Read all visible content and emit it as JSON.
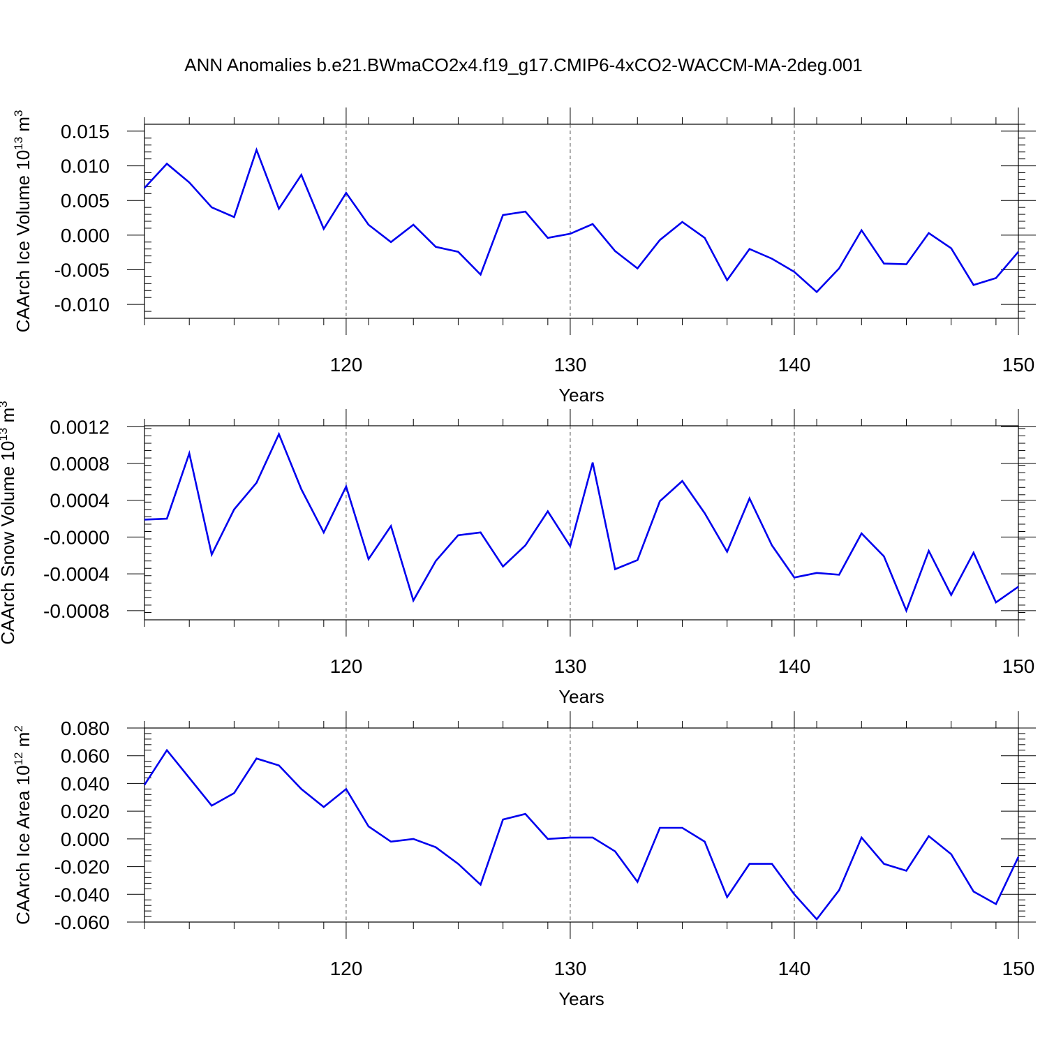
{
  "title": "ANN Anomalies b.e21.BWmaCO2x4.f19_g17.CMIP6-4xCO2-WACCM-MA-2deg.001",
  "chart_data": [
    {
      "type": "line",
      "ylabel_text": "CAArch Ice Volume 10",
      "ylabel_exp": "13",
      "ylabel_unit": " m",
      "ylabel_unit_exp": "3",
      "xlabel": "Years",
      "xlim": [
        111,
        150
      ],
      "ylim": [
        -0.012,
        0.016
      ],
      "yticks": [
        0.015,
        0.01,
        0.005,
        0.0,
        -0.005,
        -0.01
      ],
      "ytick_labels": [
        "0.015",
        "0.010",
        "0.005",
        "0.000",
        "-0.005",
        "-0.010"
      ],
      "xticks": [
        120,
        130,
        140,
        150
      ],
      "xtick_labels": [
        "120",
        "130",
        "140",
        "150"
      ],
      "grid": "vertical-dashed",
      "line_color": "#0000ee",
      "x": [
        111,
        112,
        113,
        114,
        115,
        116,
        117,
        118,
        119,
        120,
        121,
        122,
        123,
        124,
        125,
        126,
        127,
        128,
        129,
        130,
        131,
        132,
        133,
        134,
        135,
        136,
        137,
        138,
        139,
        140,
        141,
        142,
        143,
        144,
        145,
        146,
        147,
        148,
        149,
        150
      ],
      "values": [
        0.0068,
        0.0103,
        0.0076,
        0.004,
        0.0026,
        0.0123,
        0.0038,
        0.0087,
        0.0009,
        0.0061,
        0.0015,
        -0.001,
        0.0015,
        -0.0017,
        -0.0024,
        -0.0057,
        0.0029,
        0.0034,
        -0.0004,
        0.0002,
        0.0016,
        -0.0023,
        -0.0048,
        -0.0007,
        0.0019,
        -0.0004,
        -0.0065,
        -0.002,
        -0.0034,
        -0.0053,
        -0.0082,
        -0.0048,
        0.0007,
        -0.0041,
        -0.0042,
        0.0003,
        -0.0019,
        -0.0072,
        -0.0062,
        -0.0024
      ]
    },
    {
      "type": "line",
      "ylabel_text": "CAArch Snow Volume 10",
      "ylabel_exp": "13",
      "ylabel_unit": " m",
      "ylabel_unit_exp": "3",
      "xlabel": "Years",
      "xlim": [
        111,
        150
      ],
      "ylim": [
        -0.0009,
        0.00121
      ],
      "yticks": [
        0.0012,
        0.0008,
        0.0004,
        0.0,
        -0.0004,
        -0.0008
      ],
      "ytick_labels": [
        "0.0012",
        "0.0008",
        "0.0004",
        "-0.0000",
        "-0.0004",
        "-0.0008"
      ],
      "xticks": [
        120,
        130,
        140,
        150
      ],
      "xtick_labels": [
        "120",
        "130",
        "140",
        "150"
      ],
      "grid": "vertical-dashed",
      "line_color": "#0000ee",
      "x": [
        111,
        112,
        113,
        114,
        115,
        116,
        117,
        118,
        119,
        120,
        121,
        122,
        123,
        124,
        125,
        126,
        127,
        128,
        129,
        130,
        131,
        132,
        133,
        134,
        135,
        136,
        137,
        138,
        139,
        140,
        141,
        142,
        143,
        144,
        145,
        146,
        147,
        148,
        149,
        150
      ],
      "values": [
        0.00019,
        0.0002,
        0.00091,
        -0.00019,
        0.0003,
        0.00059,
        0.00112,
        0.00052,
        5e-05,
        0.00055,
        -0.00024,
        0.00012,
        -0.00069,
        -0.00026,
        2e-05,
        5e-05,
        -0.00032,
        -9e-05,
        0.00028,
        -0.0001,
        0.00081,
        -0.00035,
        -0.00025,
        0.00039,
        0.00061,
        0.00026,
        -0.00016,
        0.00042,
        -9e-05,
        -0.00044,
        -0.00039,
        -0.00041,
        4e-05,
        -0.00021,
        -0.0008,
        -0.00015,
        -0.00063,
        -0.00017,
        -0.00071,
        -0.00054
      ]
    },
    {
      "type": "line",
      "ylabel_text": "CAArch Ice Area 10",
      "ylabel_exp": "12",
      "ylabel_unit": " m",
      "ylabel_unit_exp": "2",
      "xlabel": "Years",
      "xlim": [
        111,
        150
      ],
      "ylim": [
        -0.06,
        0.08
      ],
      "yticks": [
        0.08,
        0.06,
        0.04,
        0.02,
        0.0,
        -0.02,
        -0.04,
        -0.06
      ],
      "ytick_labels": [
        "0.080",
        "0.060",
        "0.040",
        "0.020",
        "0.000",
        "-0.020",
        "-0.040",
        "-0.060"
      ],
      "xticks": [
        120,
        130,
        140,
        150
      ],
      "xtick_labels": [
        "120",
        "130",
        "140",
        "150"
      ],
      "grid": "vertical-dashed",
      "line_color": "#0000ee",
      "x": [
        111,
        112,
        113,
        114,
        115,
        116,
        117,
        118,
        119,
        120,
        121,
        122,
        123,
        124,
        125,
        126,
        127,
        128,
        129,
        130,
        131,
        132,
        133,
        134,
        135,
        136,
        137,
        138,
        139,
        140,
        141,
        142,
        143,
        144,
        145,
        146,
        147,
        148,
        149,
        150
      ],
      "values": [
        0.039,
        0.064,
        0.044,
        0.024,
        0.033,
        0.058,
        0.053,
        0.036,
        0.023,
        0.036,
        0.009,
        -0.002,
        0.0,
        -0.006,
        -0.018,
        -0.033,
        0.014,
        0.018,
        0.0,
        0.001,
        0.001,
        -0.009,
        -0.031,
        0.008,
        0.008,
        -0.002,
        -0.042,
        -0.018,
        -0.018,
        -0.04,
        -0.058,
        -0.037,
        0.001,
        -0.018,
        -0.023,
        0.002,
        -0.011,
        -0.038,
        -0.047,
        -0.013
      ]
    }
  ]
}
